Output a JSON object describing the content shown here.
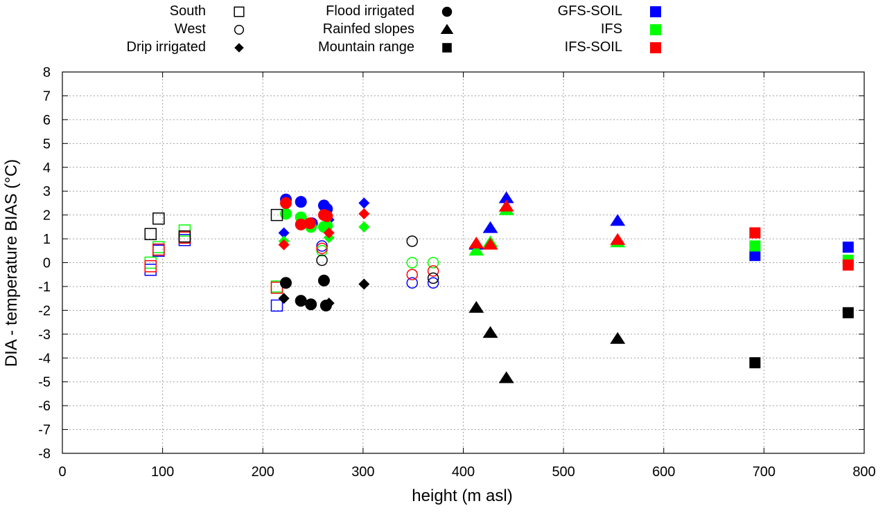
{
  "chart_data": {
    "type": "scatter",
    "title": "",
    "xlabel": "height (m asl)",
    "ylabel": "DIA - temperature BIAS (°C)",
    "xlim": [
      0,
      800
    ],
    "ylim": [
      -8,
      8
    ],
    "xticks": [
      0,
      100,
      200,
      300,
      400,
      500,
      600,
      700,
      800
    ],
    "yticks": [
      8,
      7,
      6,
      5,
      4,
      3,
      2,
      1,
      0,
      -1,
      -2,
      -3,
      -4,
      -5,
      -6,
      -7,
      -8
    ],
    "grid": true,
    "legend_placement": "top",
    "legend": {
      "shapes": [
        {
          "label": "South",
          "shape": "square-open"
        },
        {
          "label": "West",
          "shape": "circle-open"
        },
        {
          "label": "Drip irrigated",
          "shape": "diamond"
        },
        {
          "label": "Flood irrigated",
          "shape": "circle"
        },
        {
          "label": "Rainfed slopes",
          "shape": "triangle"
        },
        {
          "label": "Mountain range",
          "shape": "square"
        }
      ],
      "models": [
        {
          "label": "GFS-SOIL",
          "color": "#0000ff"
        },
        {
          "label": "IFS",
          "color": "#00ff00"
        },
        {
          "label": "IFS-SOIL",
          "color": "#ff0000"
        }
      ]
    },
    "colors": {
      "Observed": "#000000",
      "GFS-SOIL": "#0000ff",
      "IFS": "#00ff00",
      "IFS-SOIL": "#ff0000"
    },
    "series": [
      {
        "group": "South",
        "shape": "square-open",
        "model": "Observed",
        "points": [
          [
            88,
            1.2
          ],
          [
            96,
            1.85
          ],
          [
            214,
            2.0
          ],
          [
            122,
            1.1
          ]
        ]
      },
      {
        "group": "South",
        "shape": "square-open",
        "model": "GFS-SOIL",
        "points": [
          [
            88,
            -0.3
          ],
          [
            96,
            0.5
          ],
          [
            122,
            0.95
          ],
          [
            214,
            -1.8
          ]
        ]
      },
      {
        "group": "South",
        "shape": "square-open",
        "model": "IFS",
        "points": [
          [
            88,
            0.0
          ],
          [
            96,
            0.65
          ],
          [
            122,
            1.35
          ],
          [
            214,
            -1.0
          ]
        ]
      },
      {
        "group": "South",
        "shape": "square-open",
        "model": "IFS-SOIL",
        "points": [
          [
            88,
            -0.15
          ],
          [
            96,
            0.55
          ],
          [
            122,
            1.05
          ],
          [
            214,
            -1.05
          ]
        ]
      },
      {
        "group": "West",
        "shape": "circle-open",
        "model": "Observed",
        "points": [
          [
            259,
            0.1
          ],
          [
            349,
            0.9
          ],
          [
            370,
            -0.65
          ]
        ]
      },
      {
        "group": "West",
        "shape": "circle-open",
        "model": "GFS-SOIL",
        "points": [
          [
            259,
            0.7
          ],
          [
            349,
            -0.85
          ],
          [
            370,
            -0.85
          ]
        ]
      },
      {
        "group": "West",
        "shape": "circle-open",
        "model": "IFS",
        "points": [
          [
            259,
            0.5
          ],
          [
            349,
            0.0
          ],
          [
            370,
            0.0
          ]
        ]
      },
      {
        "group": "West",
        "shape": "circle-open",
        "model": "IFS-SOIL",
        "points": [
          [
            259,
            0.6
          ],
          [
            349,
            -0.5
          ],
          [
            370,
            -0.35
          ]
        ]
      },
      {
        "group": "Drip irrigated",
        "shape": "diamond",
        "model": "Observed",
        "points": [
          [
            221,
            -1.5
          ],
          [
            266,
            -1.7
          ],
          [
            301,
            -0.9
          ]
        ]
      },
      {
        "group": "Drip irrigated",
        "shape": "diamond",
        "model": "GFS-SOIL",
        "points": [
          [
            221,
            1.25
          ],
          [
            266,
            1.8
          ],
          [
            301,
            2.5
          ]
        ]
      },
      {
        "group": "Drip irrigated",
        "shape": "diamond",
        "model": "IFS",
        "points": [
          [
            221,
            0.9
          ],
          [
            266,
            1.05
          ],
          [
            301,
            1.5
          ]
        ]
      },
      {
        "group": "Drip irrigated",
        "shape": "diamond",
        "model": "IFS-SOIL",
        "points": [
          [
            221,
            0.75
          ],
          [
            266,
            1.25
          ],
          [
            301,
            2.05
          ]
        ]
      },
      {
        "group": "Flood irrigated",
        "shape": "circle",
        "model": "Observed",
        "points": [
          [
            223,
            -0.85
          ],
          [
            238,
            -1.6
          ],
          [
            248,
            -1.75
          ],
          [
            261,
            -0.75
          ],
          [
            263,
            -1.8
          ]
        ]
      },
      {
        "group": "Flood irrigated",
        "shape": "circle",
        "model": "GFS-SOIL",
        "points": [
          [
            223,
            2.65
          ],
          [
            238,
            2.55
          ],
          [
            249,
            1.65
          ],
          [
            261,
            2.4
          ],
          [
            264,
            2.25
          ]
        ]
      },
      {
        "group": "Flood irrigated",
        "shape": "circle",
        "model": "IFS",
        "points": [
          [
            223,
            2.05
          ],
          [
            238,
            1.9
          ],
          [
            248,
            1.5
          ],
          [
            261,
            1.5
          ],
          [
            264,
            1.55
          ]
        ]
      },
      {
        "group": "Flood irrigated",
        "shape": "circle",
        "model": "IFS-SOIL",
        "points": [
          [
            223,
            2.5
          ],
          [
            238,
            1.6
          ],
          [
            247,
            1.65
          ],
          [
            261,
            2.0
          ],
          [
            264,
            1.95
          ]
        ]
      },
      {
        "group": "Rainfed slopes",
        "shape": "triangle",
        "model": "Observed",
        "points": [
          [
            413,
            -1.9
          ],
          [
            427,
            -2.95
          ],
          [
            443,
            -4.85
          ],
          [
            554,
            -3.2
          ]
        ]
      },
      {
        "group": "Rainfed slopes",
        "shape": "triangle",
        "model": "GFS-SOIL",
        "points": [
          [
            413,
            0.75
          ],
          [
            427,
            1.45
          ],
          [
            443,
            2.7
          ],
          [
            554,
            1.75
          ]
        ]
      },
      {
        "group": "Rainfed slopes",
        "shape": "triangle",
        "model": "IFS",
        "points": [
          [
            413,
            0.5
          ],
          [
            427,
            0.85
          ],
          [
            443,
            2.2
          ],
          [
            554,
            0.85
          ]
        ]
      },
      {
        "group": "Rainfed slopes",
        "shape": "triangle",
        "model": "IFS-SOIL",
        "points": [
          [
            413,
            0.8
          ],
          [
            427,
            0.75
          ],
          [
            443,
            2.35
          ],
          [
            554,
            0.95
          ]
        ]
      },
      {
        "group": "Mountain range",
        "shape": "square",
        "model": "Observed",
        "points": [
          [
            691,
            -4.2
          ],
          [
            784,
            -2.1
          ]
        ]
      },
      {
        "group": "Mountain range",
        "shape": "square",
        "model": "GFS-SOIL",
        "points": [
          [
            691,
            0.3
          ],
          [
            784,
            0.65
          ]
        ]
      },
      {
        "group": "Mountain range",
        "shape": "square",
        "model": "IFS",
        "points": [
          [
            691,
            0.7
          ],
          [
            784,
            0.1
          ]
        ]
      },
      {
        "group": "Mountain range",
        "shape": "square",
        "model": "IFS-SOIL",
        "points": [
          [
            691,
            1.25
          ],
          [
            784,
            -0.1
          ]
        ]
      }
    ]
  }
}
